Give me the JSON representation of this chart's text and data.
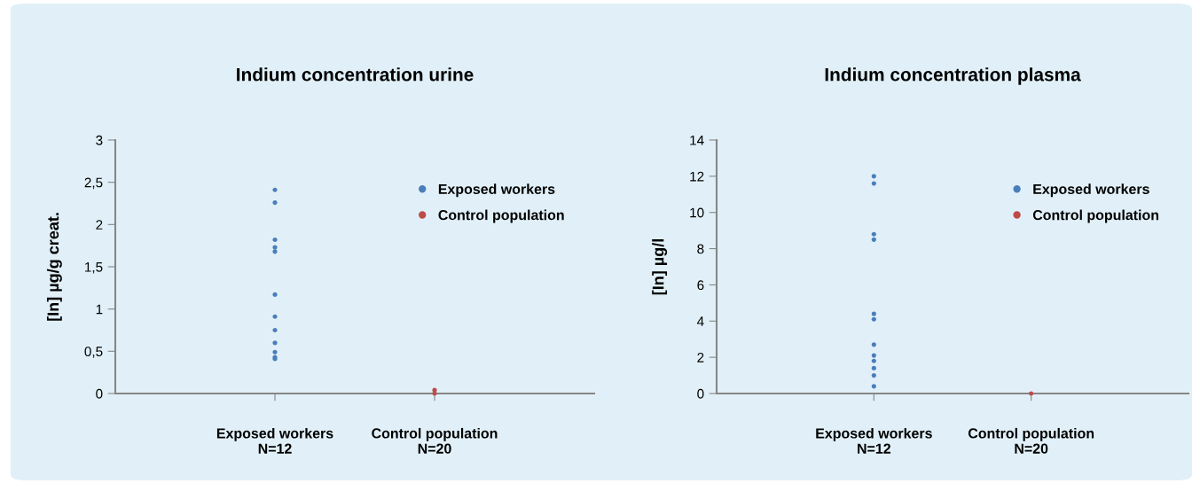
{
  "chart_data": [
    {
      "type": "scatter",
      "title": "Indium concentration urine",
      "ylabel": "[In] µg/g creat.",
      "categories": [
        "Exposed workers\nN=12",
        "Control population\nN=20"
      ],
      "ylim": [
        0,
        3
      ],
      "yticks": [
        0,
        {
          "value": 0.5,
          "label": "0,5"
        },
        1,
        {
          "value": 1.5,
          "label": "1,5"
        },
        2,
        {
          "value": 2.5,
          "label": "2,5"
        },
        3
      ],
      "grid": false,
      "legend": "top right",
      "marker": "circle",
      "series": [
        {
          "name": "Exposed workers",
          "color": "#4a7ebb",
          "x": [
            "Exposed workers\nN=12",
            "Exposed workers\nN=12",
            "Exposed workers\nN=12",
            "Exposed workers\nN=12",
            "Exposed workers\nN=12",
            "Exposed workers\nN=12",
            "Exposed workers\nN=12",
            "Exposed workers\nN=12",
            "Exposed workers\nN=12",
            "Exposed workers\nN=12",
            "Exposed workers\nN=12",
            "Exposed workers\nN=12"
          ],
          "values": [
            2.41,
            2.26,
            1.82,
            1.73,
            1.68,
            1.17,
            0.91,
            0.75,
            0.6,
            0.49,
            0.43,
            0.41
          ]
        },
        {
          "name": "Control population",
          "color": "#be4b48",
          "x": [
            "Control population\nN=20",
            "Control population\nN=20"
          ],
          "values": [
            0.04,
            0.0
          ]
        }
      ]
    },
    {
      "type": "scatter",
      "title": "Indium concentration plasma",
      "ylabel": "[In] µg/l",
      "categories": [
        "Exposed workers\nN=12",
        "Control population\nN=20"
      ],
      "ylim": [
        0,
        14
      ],
      "yticks": [
        0,
        2,
        4,
        6,
        8,
        10,
        12,
        14
      ],
      "grid": false,
      "legend": "top right",
      "marker": "circle",
      "series": [
        {
          "name": "Exposed workers",
          "color": "#4a7ebb",
          "x": [
            "Exposed workers\nN=12",
            "Exposed workers\nN=12",
            "Exposed workers\nN=12",
            "Exposed workers\nN=12",
            "Exposed workers\nN=12",
            "Exposed workers\nN=12",
            "Exposed workers\nN=12",
            "Exposed workers\nN=12",
            "Exposed workers\nN=12",
            "Exposed workers\nN=12",
            "Exposed workers\nN=12",
            "Exposed workers\nN=12"
          ],
          "values": [
            12.0,
            11.6,
            8.8,
            8.5,
            4.4,
            4.1,
            2.7,
            2.1,
            1.8,
            1.4,
            1.0,
            0.4
          ]
        },
        {
          "name": "Control population",
          "color": "#be4b48",
          "x": [
            "Control population\nN=20"
          ],
          "values": [
            0.0
          ]
        }
      ]
    }
  ]
}
